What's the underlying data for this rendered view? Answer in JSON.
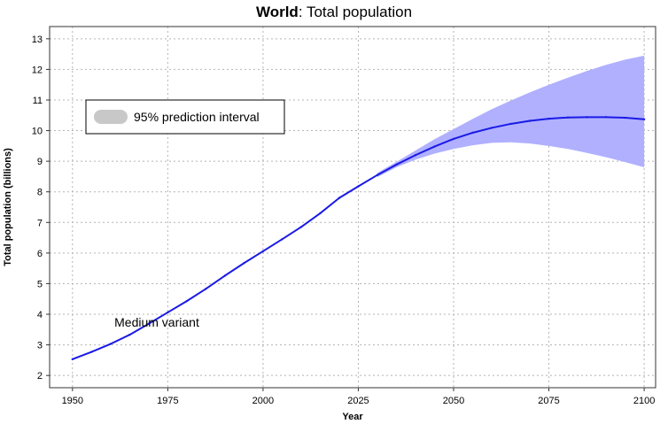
{
  "chart_data": {
    "type": "line",
    "title_bold": "World",
    "title_rest": ": Total population",
    "xlabel": "Year",
    "ylabel": "Total population (billions)",
    "xlim": [
      1944,
      2103
    ],
    "ylim": [
      1.6,
      13.4
    ],
    "xticks": [
      1950,
      1975,
      2000,
      2025,
      2050,
      2075,
      2100
    ],
    "yticks": [
      2,
      3,
      4,
      5,
      6,
      7,
      8,
      9,
      10,
      11,
      12,
      13
    ],
    "grid": true,
    "legend": {
      "placement": "upper-left",
      "entries": [
        {
          "label": "95% prediction interval",
          "color": "#c8c8c8"
        }
      ]
    },
    "annotations": [
      {
        "text": "Medium variant",
        "x": 1961,
        "y": 3.6
      }
    ],
    "series": [
      {
        "name": "Medium variant",
        "color": "#1a1ae6",
        "x": [
          1950,
          1955,
          1960,
          1965,
          1970,
          1975,
          1980,
          1985,
          1990,
          1995,
          2000,
          2005,
          2010,
          2015,
          2020,
          2025,
          2030,
          2035,
          2040,
          2045,
          2050,
          2055,
          2060,
          2065,
          2070,
          2075,
          2080,
          2085,
          2090,
          2095,
          2100
        ],
        "y": [
          2.53,
          2.77,
          3.03,
          3.33,
          3.69,
          4.06,
          4.43,
          4.83,
          5.26,
          5.67,
          6.06,
          6.45,
          6.85,
          7.3,
          7.8,
          8.18,
          8.55,
          8.89,
          9.2,
          9.48,
          9.73,
          9.93,
          10.09,
          10.22,
          10.32,
          10.39,
          10.43,
          10.44,
          10.44,
          10.42,
          10.37
        ]
      }
    ],
    "prediction_interval": {
      "label": "95% prediction interval",
      "color": "#b0b0ff",
      "x": [
        2030,
        2035,
        2040,
        2045,
        2050,
        2055,
        2060,
        2065,
        2070,
        2075,
        2080,
        2085,
        2090,
        2095,
        2100
      ],
      "lower": [
        8.48,
        8.8,
        9.05,
        9.25,
        9.4,
        9.52,
        9.6,
        9.62,
        9.58,
        9.5,
        9.4,
        9.27,
        9.13,
        8.97,
        8.8
      ],
      "upper": [
        8.62,
        8.98,
        9.35,
        9.72,
        10.05,
        10.38,
        10.7,
        10.98,
        11.25,
        11.5,
        11.73,
        11.95,
        12.15,
        12.32,
        12.45
      ]
    }
  }
}
